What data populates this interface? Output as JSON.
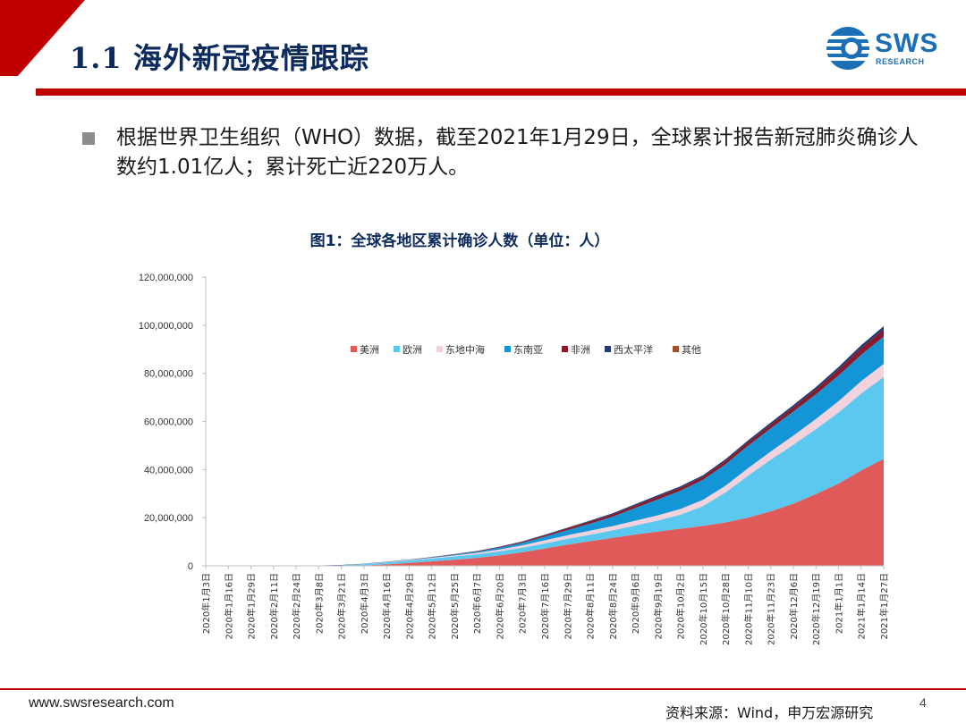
{
  "header": {
    "title": "1.1 海外新冠疫情跟踪",
    "logo": {
      "text": "SWS",
      "subtext": "RESEARCH"
    }
  },
  "bullet": {
    "text": "根据世界卫生组织（WHO）数据，截至2021年1月29日，全球累计报告新冠肺炎确诊人数约1.01亿人；累计死亡近220万人。"
  },
  "colors": {
    "brand_red": "#c00000",
    "title_navy": "#0d2a5c",
    "logo_blue": "#1d6fb5"
  },
  "chart_data": {
    "type": "area",
    "stacked": true,
    "title": "图1：全球各地区累计确诊人数（单位：人）",
    "xlabel": "",
    "ylabel": "",
    "ylim": [
      0,
      120000000
    ],
    "yticks": [
      0,
      20000000,
      40000000,
      60000000,
      80000000,
      100000000,
      120000000
    ],
    "ytick_labels": [
      "0",
      "20,000,000",
      "40,000,000",
      "60,000,000",
      "80,000,000",
      "100,000,000",
      "120,000,000"
    ],
    "grid": false,
    "legend_position": "top-center",
    "categories": [
      "2020年1月3日",
      "2020年1月16日",
      "2020年1月29日",
      "2020年2月11日",
      "2020年2月24日",
      "2020年3月8日",
      "2020年3月21日",
      "2020年4月3日",
      "2020年4月16日",
      "2020年4月29日",
      "2020年5月12日",
      "2020年5月25日",
      "2020年6月7日",
      "2020年6月20日",
      "2020年7月3日",
      "2020年7月16日",
      "2020年7月29日",
      "2020年8月11日",
      "2020年8月24日",
      "2020年9月6日",
      "2020年9月19日",
      "2020年10月2日",
      "2020年10月15日",
      "2020年10月28日",
      "2020年11月10日",
      "2020年11月23日",
      "2020年12月6日",
      "2020年12月19日",
      "2021年1月1日",
      "2021年1月14日",
      "2021年1月27日"
    ],
    "series": [
      {
        "name": "美洲",
        "color": "#e05a5a",
        "values": [
          0,
          0,
          0,
          0,
          0,
          0,
          20000,
          200000,
          600000,
          1200000,
          1800000,
          2500000,
          3300000,
          4300000,
          5600000,
          7200000,
          8800000,
          10200000,
          11600000,
          13000000,
          14200000,
          15400000,
          16600000,
          18000000,
          20000000,
          22600000,
          25800000,
          29800000,
          34200000,
          39600000,
          44500000
        ]
      },
      {
        "name": "欧洲",
        "color": "#5bc8f0",
        "values": [
          0,
          0,
          0,
          0,
          1000,
          30000,
          200000,
          500000,
          800000,
          1000000,
          1200000,
          1400000,
          1500000,
          1700000,
          1900000,
          2100000,
          2400000,
          2700000,
          3100000,
          3700000,
          4600000,
          5800000,
          8200000,
          12500000,
          17500000,
          21500000,
          24500000,
          27000000,
          29500000,
          32000000,
          34000000
        ]
      },
      {
        "name": "东地中海",
        "color": "#f2d2dc",
        "values": [
          0,
          0,
          0,
          0,
          1000,
          8000,
          30000,
          70000,
          130000,
          200000,
          300000,
          420000,
          600000,
          800000,
          1000000,
          1300000,
          1500000,
          1700000,
          1800000,
          2000000,
          2200000,
          2400000,
          2600000,
          2800000,
          3100000,
          3400000,
          3800000,
          4200000,
          4700000,
          5100000,
          5400000
        ]
      },
      {
        "name": "东南亚",
        "color": "#1495d6",
        "values": [
          0,
          0,
          0,
          0,
          0,
          500,
          1000,
          5000,
          20000,
          50000,
          150000,
          300000,
          450000,
          700000,
          1000000,
          1500000,
          2100000,
          2900000,
          3900000,
          5300000,
          6600000,
          7600000,
          8300000,
          8900000,
          9300000,
          9600000,
          10000000,
          10300000,
          10700000,
          11000000,
          11400000
        ]
      },
      {
        "name": "非洲",
        "color": "#8a1a2a",
        "values": [
          0,
          0,
          0,
          0,
          0,
          200,
          1000,
          5000,
          15000,
          30000,
          60000,
          100000,
          170000,
          260000,
          400000,
          560000,
          750000,
          900000,
          1000000,
          1100000,
          1200000,
          1250000,
          1300000,
          1400000,
          1500000,
          1600000,
          1800000,
          2000000,
          2400000,
          2700000,
          2900000
        ]
      },
      {
        "name": "西太平洋",
        "color": "#243a73",
        "values": [
          1000,
          15000,
          80000,
          85000,
          85000,
          95000,
          110000,
          120000,
          130000,
          140000,
          150000,
          160000,
          170000,
          190000,
          210000,
          240000,
          280000,
          350000,
          430000,
          480000,
          530000,
          580000,
          630000,
          700000,
          760000,
          820000,
          900000,
          980000,
          1100000,
          1250000,
          1400000
        ]
      },
      {
        "name": "其他",
        "color": "#a0522d",
        "values": [
          0,
          0,
          0,
          0,
          700,
          700,
          700,
          700,
          700,
          700,
          700,
          700,
          700,
          700,
          700,
          700,
          700,
          700,
          700,
          700,
          700,
          700,
          700,
          700,
          700,
          700,
          700,
          700,
          700,
          700,
          700
        ]
      }
    ]
  },
  "footer": {
    "url": "www.swsresearch.com",
    "source": "资料来源：Wind，申万宏源研究",
    "page_number": "4"
  }
}
